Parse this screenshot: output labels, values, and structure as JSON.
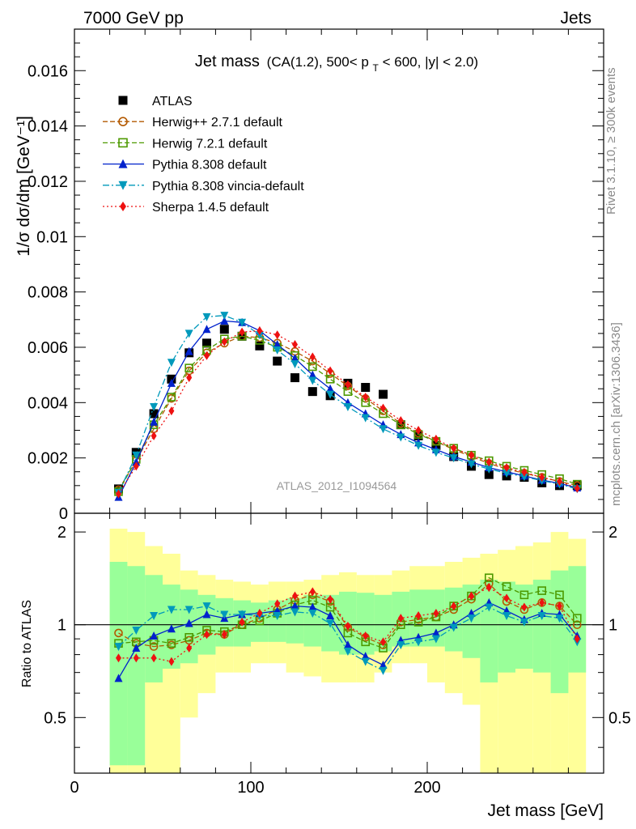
{
  "header": {
    "left": "7000 GeV pp",
    "right": "Jets"
  },
  "side_labels": {
    "rivet": "Rivet 3.1.10, ≥ 300k events",
    "mcplots": "mcplots.cern.ch [arXiv:1306.3436]"
  },
  "chart_data": [
    {
      "type": "line",
      "title_main": "Jet mass",
      "title_cut_prefix": "(CA(1.2), 500< p",
      "title_cut_sub": "T",
      "title_cut_suffix": " < 600, |y| < 2.0)",
      "ylabel": "1/σ dσ/dm [GeV⁻¹]",
      "watermark": "ATLAS_2012_I1094564",
      "xlim": [
        0,
        300
      ],
      "ylim": [
        0,
        0.0175
      ],
      "y_tick_labels": [
        "0",
        "0.002",
        "0.004",
        "0.006",
        "0.008",
        "0.01",
        "0.012",
        "0.014",
        "0.016"
      ],
      "x_bin_centers": [
        25,
        35,
        45,
        55,
        65,
        75,
        85,
        95,
        105,
        115,
        125,
        135,
        145,
        155,
        165,
        175,
        185,
        195,
        205,
        215,
        225,
        235,
        245,
        255,
        265,
        275,
        285
      ],
      "series": [
        {
          "name": "ATLAS",
          "color": "#000000",
          "marker": "square-filled",
          "line": "none",
          "values": [
            0.00088,
            0.0022,
            0.0036,
            0.00485,
            0.0058,
            0.00615,
            0.00665,
            0.0064,
            0.00605,
            0.0055,
            0.0049,
            0.0044,
            0.00425,
            0.0047,
            0.00455,
            0.0043,
            0.0032,
            0.0028,
            0.00245,
            0.00205,
            0.0017,
            0.0014,
            0.00135,
            0.0013,
            0.0011,
            0.001,
            0.001
          ]
        },
        {
          "name": "Herwig++ 2.7.1 default",
          "color": "#b35900",
          "marker": "circle-open",
          "line": "dashed",
          "values": [
            0.00085,
            0.0019,
            0.00305,
            0.00415,
            0.00515,
            0.0058,
            0.00615,
            0.0064,
            0.00635,
            0.00615,
            0.00585,
            0.0055,
            0.00505,
            0.0046,
            0.00415,
            0.0037,
            0.00325,
            0.0029,
            0.0026,
            0.0023,
            0.00205,
            0.0018,
            0.0016,
            0.00145,
            0.0013,
            0.00115,
            0.001
          ]
        },
        {
          "name": "Herwig 7.2.1 default",
          "color": "#4d9900",
          "marker": "square-open",
          "line": "dashed",
          "values": [
            0.00078,
            0.00195,
            0.0032,
            0.0042,
            0.00525,
            0.0059,
            0.0063,
            0.0064,
            0.00625,
            0.006,
            0.0057,
            0.0053,
            0.00485,
            0.0044,
            0.004,
            0.0036,
            0.0032,
            0.00285,
            0.0026,
            0.00235,
            0.0021,
            0.0019,
            0.0017,
            0.00155,
            0.0014,
            0.00125,
            0.00105
          ]
        },
        {
          "name": "Pythia 8.308 default",
          "color": "#0022cc",
          "marker": "triangle-up",
          "line": "solid",
          "values": [
            0.00058,
            0.00185,
            0.0033,
            0.0047,
            0.00585,
            0.00665,
            0.00695,
            0.0069,
            0.0066,
            0.0061,
            0.0056,
            0.005,
            0.0045,
            0.004,
            0.0036,
            0.0032,
            0.00285,
            0.00255,
            0.0023,
            0.00205,
            0.00185,
            0.00165,
            0.0015,
            0.00135,
            0.0012,
            0.00108,
            0.00092
          ]
        },
        {
          "name": "Pythia 8.308 vincia-default",
          "color": "#0099bb",
          "marker": "triangle-down",
          "line": "dashdot",
          "values": [
            0.00075,
            0.0021,
            0.00385,
            0.00545,
            0.0065,
            0.0071,
            0.00715,
            0.0069,
            0.00645,
            0.0059,
            0.0054,
            0.0048,
            0.0043,
            0.00385,
            0.00345,
            0.00305,
            0.00275,
            0.00245,
            0.0022,
            0.002,
            0.00178,
            0.0016,
            0.00145,
            0.00132,
            0.00118,
            0.00105,
            0.00088
          ]
        },
        {
          "name": "Sherpa 1.4.5 default",
          "color": "#ee1111",
          "marker": "diamond-filled",
          "line": "dotted",
          "values": [
            0.0007,
            0.0017,
            0.0028,
            0.0037,
            0.0049,
            0.0057,
            0.0062,
            0.00655,
            0.0066,
            0.00645,
            0.0061,
            0.00565,
            0.00515,
            0.00465,
            0.0042,
            0.0038,
            0.00335,
            0.003,
            0.00268,
            0.00235,
            0.0021,
            0.00185,
            0.00165,
            0.00148,
            0.0013,
            0.00115,
            0.0009
          ]
        }
      ]
    },
    {
      "type": "line",
      "ylabel": "Ratio to ATLAS",
      "xlabel": "Jet mass [GeV]",
      "xlim": [
        0,
        300
      ],
      "ylim": [
        0.33,
        2.3
      ],
      "x_tick_labels": [
        "0",
        "100",
        "200"
      ],
      "y_tick_labels": [
        "0.5",
        "1",
        "2"
      ],
      "bins": [
        [
          20,
          30
        ],
        [
          30,
          40
        ],
        [
          40,
          50
        ],
        [
          50,
          60
        ],
        [
          60,
          70
        ],
        [
          70,
          80
        ],
        [
          80,
          90
        ],
        [
          90,
          100
        ],
        [
          100,
          110
        ],
        [
          110,
          120
        ],
        [
          120,
          130
        ],
        [
          130,
          140
        ],
        [
          140,
          150
        ],
        [
          150,
          160
        ],
        [
          160,
          170
        ],
        [
          170,
          180
        ],
        [
          180,
          190
        ],
        [
          190,
          200
        ],
        [
          200,
          210
        ],
        [
          210,
          220
        ],
        [
          220,
          230
        ],
        [
          230,
          240
        ],
        [
          240,
          250
        ],
        [
          250,
          260
        ],
        [
          260,
          270
        ],
        [
          270,
          280
        ],
        [
          280,
          290
        ]
      ],
      "band_colors": {
        "outer": "#ffff99",
        "inner": "#99ff99"
      },
      "outer_band": [
        [
          0.3,
          2.05
        ],
        [
          0.3,
          2.0
        ],
        [
          0.3,
          1.8
        ],
        [
          0.3,
          1.7
        ],
        [
          0.5,
          1.5
        ],
        [
          0.6,
          1.45
        ],
        [
          0.7,
          1.4
        ],
        [
          0.7,
          1.38
        ],
        [
          0.75,
          1.35
        ],
        [
          0.75,
          1.38
        ],
        [
          0.7,
          1.38
        ],
        [
          0.68,
          1.4
        ],
        [
          0.65,
          1.45
        ],
        [
          0.65,
          1.48
        ],
        [
          0.65,
          1.45
        ],
        [
          0.7,
          1.45
        ],
        [
          0.75,
          1.5
        ],
        [
          0.75,
          1.55
        ],
        [
          0.65,
          1.55
        ],
        [
          0.6,
          1.6
        ],
        [
          0.55,
          1.65
        ],
        [
          0.3,
          1.7
        ],
        [
          0.3,
          1.75
        ],
        [
          0.3,
          1.8
        ],
        [
          0.3,
          1.85
        ],
        [
          0.3,
          2.0
        ],
        [
          0.3,
          1.9
        ]
      ],
      "inner_band": [
        [
          0.35,
          1.6
        ],
        [
          0.35,
          1.55
        ],
        [
          0.65,
          1.45
        ],
        [
          0.72,
          1.35
        ],
        [
          0.75,
          1.3
        ],
        [
          0.8,
          1.25
        ],
        [
          0.85,
          1.22
        ],
        [
          0.85,
          1.2
        ],
        [
          0.88,
          1.18
        ],
        [
          0.88,
          1.2
        ],
        [
          0.87,
          1.22
        ],
        [
          0.85,
          1.25
        ],
        [
          0.82,
          1.25
        ],
        [
          0.8,
          1.28
        ],
        [
          0.8,
          1.27
        ],
        [
          0.82,
          1.25
        ],
        [
          0.85,
          1.28
        ],
        [
          0.85,
          1.3
        ],
        [
          0.85,
          1.3
        ],
        [
          0.82,
          1.32
        ],
        [
          0.78,
          1.35
        ],
        [
          0.65,
          1.4
        ],
        [
          0.7,
          1.38
        ],
        [
          0.72,
          1.35
        ],
        [
          0.7,
          1.4
        ],
        [
          0.6,
          1.5
        ],
        [
          0.7,
          1.55
        ]
      ],
      "series": [
        {
          "name": "Herwig++ 2.7.1 default",
          "color": "#b35900",
          "marker": "circle-open",
          "line": "dashed",
          "values": [
            0.94,
            0.87,
            0.85,
            0.86,
            0.89,
            0.94,
            0.93,
            1.0,
            1.05,
            1.12,
            1.2,
            1.25,
            1.19,
            0.98,
            0.91,
            0.86,
            1.02,
            1.04,
            1.06,
            1.12,
            1.21,
            1.36,
            1.19,
            1.12,
            1.18,
            1.15,
            1.0
          ]
        },
        {
          "name": "Herwig 7.2.1 default",
          "color": "#4d9900",
          "marker": "square-open",
          "line": "dashed",
          "values": [
            0.87,
            0.88,
            0.89,
            0.87,
            0.91,
            0.96,
            0.95,
            1.0,
            1.03,
            1.09,
            1.16,
            1.2,
            1.14,
            0.94,
            0.88,
            0.84,
            1.0,
            1.02,
            1.06,
            1.15,
            1.24,
            1.42,
            1.33,
            1.25,
            1.29,
            1.25,
            1.05
          ]
        },
        {
          "name": "Pythia 8.308 default",
          "color": "#0022cc",
          "marker": "triangle-up",
          "line": "solid",
          "values": [
            0.67,
            0.84,
            0.92,
            0.97,
            1.01,
            1.08,
            1.05,
            1.08,
            1.09,
            1.11,
            1.15,
            1.14,
            1.07,
            0.86,
            0.79,
            0.74,
            0.89,
            0.91,
            0.94,
            1.0,
            1.09,
            1.18,
            1.11,
            1.04,
            1.09,
            1.08,
            0.92
          ]
        },
        {
          "name": "Pythia 8.308 vincia-default",
          "color": "#0099bb",
          "marker": "triangle-down",
          "line": "dashdot",
          "values": [
            0.85,
            0.96,
            1.07,
            1.12,
            1.12,
            1.15,
            1.08,
            1.08,
            1.07,
            1.07,
            1.1,
            1.09,
            1.01,
            0.82,
            0.76,
            0.71,
            0.86,
            0.88,
            0.9,
            0.98,
            1.05,
            1.14,
            1.07,
            1.02,
            1.07,
            1.05,
            0.88
          ]
        },
        {
          "name": "Sherpa 1.4.5 default",
          "color": "#ee1111",
          "marker": "diamond-filled",
          "line": "dotted",
          "values": [
            0.78,
            0.78,
            0.78,
            0.76,
            0.84,
            0.93,
            0.93,
            1.02,
            1.09,
            1.17,
            1.24,
            1.28,
            1.21,
            0.99,
            0.92,
            0.88,
            1.05,
            1.07,
            1.09,
            1.15,
            1.24,
            1.32,
            1.22,
            1.14,
            1.18,
            1.15,
            0.9
          ]
        }
      ]
    }
  ]
}
